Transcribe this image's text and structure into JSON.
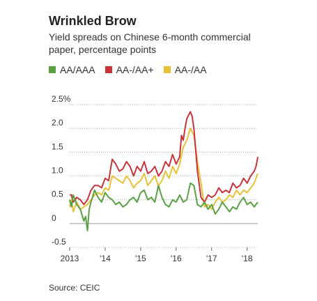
{
  "header": {
    "title": "Wrinkled Brow",
    "subtitle": "Yield spreads on Chinese 6-month commercial paper, percentage points"
  },
  "footer": {
    "source": "Source: CEIC"
  },
  "chart_data": {
    "type": "line",
    "title": "Wrinkled Brow",
    "subtitle": "Yield spreads on Chinese 6-month commercial paper, percentage points",
    "ylim": [
      -0.5,
      2.5
    ],
    "xlim": [
      2013.0,
      2018.3
    ],
    "y_ticks": [
      -0.5,
      0,
      0.5,
      1.0,
      1.5,
      2.0,
      2.5
    ],
    "y_tick_labels": [
      "-0.5",
      "0",
      "0.5",
      "1.0",
      "1.5",
      "2.0",
      "2.5%"
    ],
    "x_ticks": [
      2013.0,
      2014.0,
      2015.0,
      2016.0,
      2017.0,
      2018.0
    ],
    "x_tick_labels": [
      "2013",
      "'14",
      "'15",
      "'16",
      "'17",
      "'18"
    ],
    "grid": "horizontal dotted",
    "legend_position": "top",
    "series": [
      {
        "name": "AA/AAA",
        "color": "#5aa141",
        "x": [
          2013.0,
          2013.05,
          2013.1,
          2013.2,
          2013.3,
          2013.4,
          2013.45,
          2013.5,
          2013.55,
          2013.6,
          2013.7,
          2013.8,
          2013.9,
          2014.0,
          2014.1,
          2014.2,
          2014.3,
          2014.4,
          2014.5,
          2014.6,
          2014.7,
          2014.8,
          2014.9,
          2015.0,
          2015.1,
          2015.2,
          2015.3,
          2015.4,
          2015.5,
          2015.6,
          2015.7,
          2015.8,
          2015.9,
          2016.0,
          2016.1,
          2016.2,
          2016.3,
          2016.4,
          2016.5,
          2016.6,
          2016.7,
          2016.8,
          2016.9,
          2017.0,
          2017.1,
          2017.2,
          2017.3,
          2017.4,
          2017.5,
          2017.6,
          2017.7,
          2017.8,
          2017.9,
          2018.0,
          2018.1,
          2018.2,
          2018.3
        ],
        "y": [
          0.5,
          0.35,
          0.6,
          0.4,
          0.3,
          0.05,
          0.15,
          -0.15,
          0.3,
          0.45,
          0.7,
          0.55,
          0.45,
          0.65,
          0.55,
          0.5,
          0.4,
          0.45,
          0.35,
          0.4,
          0.5,
          0.55,
          0.45,
          0.65,
          0.7,
          0.5,
          0.55,
          0.45,
          0.8,
          0.55,
          0.4,
          0.35,
          0.5,
          0.45,
          0.6,
          0.45,
          0.5,
          0.85,
          0.8,
          0.4,
          0.35,
          0.45,
          0.3,
          0.4,
          0.2,
          0.3,
          0.45,
          0.35,
          0.25,
          0.35,
          0.3,
          0.45,
          0.55,
          0.4,
          0.45,
          0.35,
          0.45
        ]
      },
      {
        "name": "AA-/AA+",
        "color": "#c8333a",
        "x": [
          2013.0,
          2013.05,
          2013.1,
          2013.2,
          2013.3,
          2013.4,
          2013.5,
          2013.6,
          2013.7,
          2013.8,
          2013.9,
          2014.0,
          2014.1,
          2014.2,
          2014.3,
          2014.4,
          2014.5,
          2014.6,
          2014.7,
          2014.8,
          2014.9,
          2015.0,
          2015.1,
          2015.2,
          2015.3,
          2015.4,
          2015.5,
          2015.6,
          2015.7,
          2015.8,
          2015.9,
          2016.0,
          2016.1,
          2016.15,
          2016.2,
          2016.25,
          2016.3,
          2016.4,
          2016.45,
          2016.5,
          2016.6,
          2016.7,
          2016.8,
          2016.9,
          2017.0,
          2017.1,
          2017.2,
          2017.3,
          2017.4,
          2017.5,
          2017.6,
          2017.7,
          2017.8,
          2017.9,
          2018.0,
          2018.1,
          2018.2,
          2018.25,
          2018.3
        ],
        "y": [
          0.6,
          0.6,
          0.45,
          0.55,
          0.5,
          0.4,
          0.5,
          0.7,
          0.8,
          0.8,
          0.75,
          0.95,
          0.9,
          1.35,
          1.25,
          1.1,
          1.15,
          1.3,
          1.2,
          1.0,
          1.2,
          1.1,
          1.3,
          1.05,
          1.1,
          1.2,
          1.0,
          1.1,
          1.3,
          1.2,
          1.45,
          1.25,
          1.4,
          1.85,
          1.75,
          2.0,
          2.2,
          2.35,
          2.25,
          2.0,
          1.1,
          0.55,
          0.45,
          0.6,
          0.55,
          0.6,
          0.75,
          0.65,
          0.7,
          0.65,
          0.85,
          0.75,
          0.8,
          0.95,
          0.85,
          1.0,
          1.1,
          1.2,
          1.4
        ]
      },
      {
        "name": "AA-/AA",
        "color": "#e8c234",
        "x": [
          2013.0,
          2013.05,
          2013.1,
          2013.2,
          2013.3,
          2013.4,
          2013.5,
          2013.6,
          2013.7,
          2013.8,
          2013.9,
          2014.0,
          2014.1,
          2014.2,
          2014.3,
          2014.4,
          2014.5,
          2014.6,
          2014.7,
          2014.8,
          2014.9,
          2015.0,
          2015.1,
          2015.2,
          2015.3,
          2015.4,
          2015.5,
          2015.6,
          2015.7,
          2015.8,
          2015.9,
          2016.0,
          2016.1,
          2016.2,
          2016.3,
          2016.4,
          2016.5,
          2016.6,
          2016.7,
          2016.8,
          2016.9,
          2017.0,
          2017.1,
          2017.2,
          2017.3,
          2017.4,
          2017.5,
          2017.6,
          2017.7,
          2017.8,
          2017.9,
          2018.0,
          2018.1,
          2018.2,
          2018.3
        ],
        "y": [
          0.35,
          0.5,
          0.25,
          0.45,
          0.3,
          0.35,
          0.4,
          0.5,
          0.6,
          0.65,
          0.6,
          0.75,
          0.7,
          1.0,
          0.95,
          0.9,
          0.85,
          1.0,
          0.9,
          0.75,
          0.85,
          0.9,
          1.05,
          0.8,
          0.9,
          1.0,
          0.8,
          0.9,
          1.1,
          0.95,
          1.2,
          1.05,
          1.25,
          1.6,
          1.75,
          2.0,
          1.85,
          1.3,
          0.85,
          0.35,
          0.4,
          0.3,
          0.45,
          0.55,
          0.45,
          0.5,
          0.6,
          0.55,
          0.7,
          0.6,
          0.7,
          0.65,
          0.75,
          0.85,
          1.05
        ]
      }
    ]
  }
}
